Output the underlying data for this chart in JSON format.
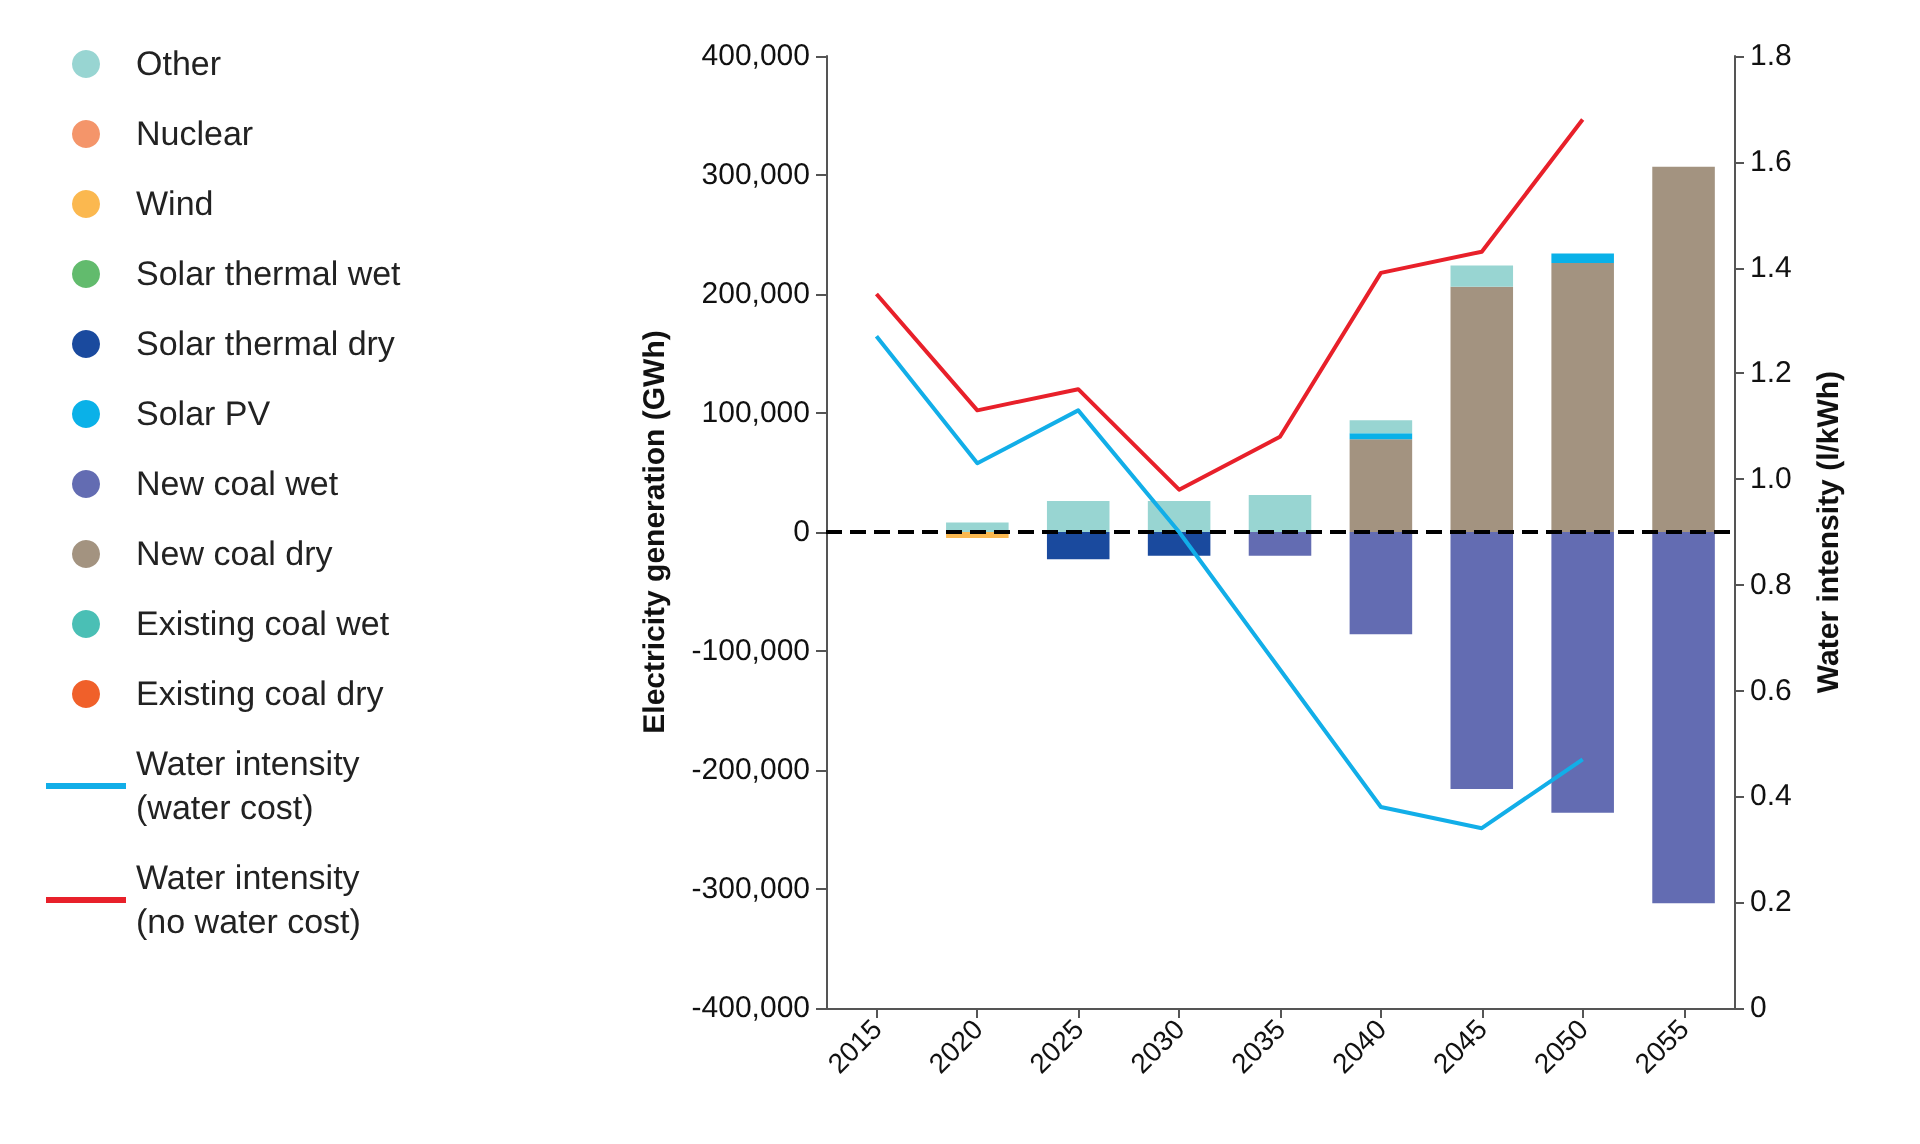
{
  "chart_data": {
    "type": "bar",
    "stacked": true,
    "ylabel": "Electricity generation (GWh)",
    "y2label": "Water intensity (l/kWh)",
    "categories": [
      "2015",
      "2020",
      "2025",
      "2030",
      "2035",
      "2040",
      "2045",
      "2050",
      "2055"
    ],
    "series": [
      {
        "name": "Existing coal dry",
        "color": "#f0602a",
        "values": [
          null,
          null,
          null,
          null,
          null,
          null,
          null,
          null,
          null
        ]
      },
      {
        "name": "Existing coal wet",
        "color": "#4abfb5",
        "values": [
          null,
          null,
          null,
          null,
          null,
          null,
          null,
          null,
          null
        ]
      },
      {
        "name": "New coal dry",
        "color": "#a39380",
        "values": [
          null,
          null,
          null,
          null,
          null,
          78000,
          206000,
          226000,
          307000
        ]
      },
      {
        "name": "New coal wet",
        "color": "#636cb2",
        "values": [
          null,
          null,
          null,
          null,
          -20000,
          -86000,
          -216000,
          -236000,
          -312000
        ]
      },
      {
        "name": "Solar PV",
        "color": "#0ab1e8",
        "values": [
          null,
          null,
          null,
          null,
          null,
          5000,
          null,
          8000,
          null
        ]
      },
      {
        "name": "Solar thermal dry",
        "color": "#1a4a9e",
        "values": [
          null,
          null,
          -23000,
          -20000,
          null,
          null,
          null,
          null,
          null
        ]
      },
      {
        "name": "Solar thermal wet",
        "color": "#62bb6d",
        "values": [
          null,
          null,
          null,
          null,
          null,
          null,
          null,
          null,
          null
        ]
      },
      {
        "name": "Wind",
        "color": "#fbb84f",
        "values": [
          null,
          -5000,
          null,
          null,
          null,
          null,
          null,
          null,
          null
        ]
      },
      {
        "name": "Nuclear",
        "color": "#f4956a",
        "values": [
          null,
          null,
          null,
          null,
          null,
          null,
          null,
          null,
          null
        ]
      },
      {
        "name": "Other",
        "color": "#98d5d2",
        "values": [
          null,
          8000,
          26000,
          26000,
          31000,
          11000,
          18000,
          null,
          null
        ]
      },
      {
        "name": "Water intensity (water cost)",
        "type": "line",
        "axis": "y2",
        "color": "#12aee8",
        "values": [
          1.27,
          1.03,
          1.13,
          0.9,
          0.64,
          0.38,
          0.34,
          0.47,
          null
        ]
      },
      {
        "name": "Water intensity (no water cost)",
        "type": "line",
        "axis": "y2",
        "color": "#e8202a",
        "values": [
          1.35,
          1.13,
          1.17,
          0.98,
          1.08,
          1.39,
          1.43,
          1.68,
          null
        ]
      }
    ],
    "ylim": [
      -400000,
      400000
    ],
    "yticks": [
      {
        "value": -400000,
        "label": "-400,000"
      },
      {
        "value": -300000,
        "label": "-300,000"
      },
      {
        "value": -200000,
        "label": "-200,000"
      },
      {
        "value": -100000,
        "label": "-100,000"
      },
      0,
      {
        "value": 100000,
        "label": "100,000"
      },
      {
        "value": 200000,
        "label": "200,000"
      },
      {
        "value": 300000,
        "label": "300,000"
      },
      {
        "value": 400000,
        "label": "400,000"
      }
    ],
    "y2lim": [
      0,
      1.8
    ],
    "y2ticks": [
      0,
      0.2,
      0.4,
      0.6,
      0.8,
      {
        "value": 1,
        "label": "1.0"
      },
      1.2,
      1.4,
      1.6,
      1.8
    ],
    "ref_lines": [
      {
        "axis": "y",
        "value": 0,
        "color": "#000000",
        "line_style": "dashed"
      }
    ],
    "legend": "left",
    "grid": false,
    "marker": "none"
  }
}
